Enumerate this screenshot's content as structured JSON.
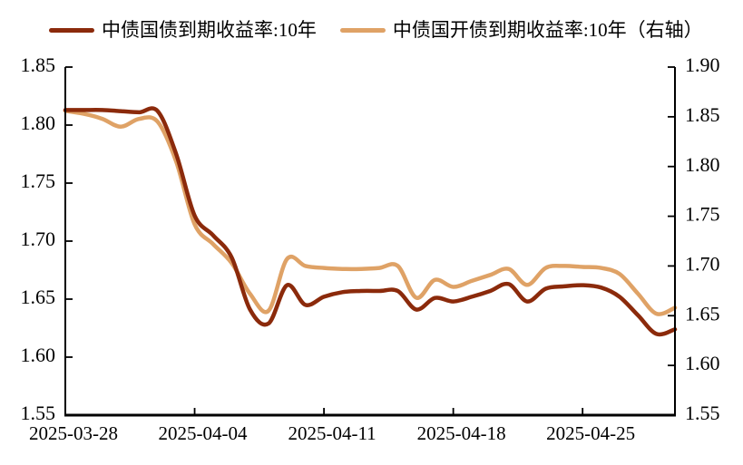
{
  "page": {
    "background": "#FFFFFF",
    "text_color": "#000000"
  },
  "legend": {
    "items": [
      {
        "label": "中债国债到期收益率:10年",
        "color": "#8B2A0B"
      },
      {
        "label": "中债国开债到期收益率:10年（右轴）",
        "color": "#DFA266"
      }
    ]
  },
  "chart_data": {
    "type": "line",
    "title": "",
    "grid": false,
    "legend_position": "top",
    "x": [
      "2025-03-28",
      "2025-03-29",
      "2025-03-30",
      "2025-03-31",
      "2025-04-01",
      "2025-04-02",
      "2025-04-03",
      "2025-04-04",
      "2025-04-05",
      "2025-04-06",
      "2025-04-07",
      "2025-04-08",
      "2025-04-09",
      "2025-04-10",
      "2025-04-11",
      "2025-04-12",
      "2025-04-13",
      "2025-04-14",
      "2025-04-15",
      "2025-04-16",
      "2025-04-17",
      "2025-04-18",
      "2025-04-19",
      "2025-04-20",
      "2025-04-21",
      "2025-04-22",
      "2025-04-23",
      "2025-04-24",
      "2025-04-25",
      "2025-04-26",
      "2025-04-27",
      "2025-04-28",
      "2025-04-29",
      "2025-04-30"
    ],
    "x_tick_labels": [
      "2025-03-28",
      "2025-04-04",
      "2025-04-11",
      "2025-04-18",
      "2025-04-25"
    ],
    "x_tick_indices": [
      0,
      7,
      14,
      21,
      28
    ],
    "series": [
      {
        "name": "中债国债到期收益率:10年",
        "axis": "left",
        "color": "#8B2A0B",
        "values": [
          1.813,
          1.813,
          1.813,
          1.812,
          1.811,
          1.812,
          1.775,
          1.722,
          1.705,
          1.686,
          1.641,
          1.629,
          1.662,
          1.645,
          1.652,
          1.656,
          1.657,
          1.657,
          1.657,
          1.641,
          1.651,
          1.648,
          1.652,
          1.657,
          1.663,
          1.648,
          1.659,
          1.661,
          1.662,
          1.66,
          1.652,
          1.636,
          1.62,
          1.624
        ]
      },
      {
        "name": "中债国开债到期收益率:10年（右轴）",
        "axis": "right",
        "color": "#DFA266",
        "values": [
          1.856,
          1.853,
          1.848,
          1.84,
          1.848,
          1.845,
          1.805,
          1.742,
          1.722,
          1.703,
          1.672,
          1.655,
          1.707,
          1.7,
          1.698,
          1.697,
          1.697,
          1.698,
          1.7,
          1.668,
          1.686,
          1.679,
          1.685,
          1.691,
          1.697,
          1.681,
          1.698,
          1.7,
          1.699,
          1.698,
          1.692,
          1.672,
          1.652,
          1.658
        ]
      }
    ],
    "y_axis_left": {
      "min": 1.55,
      "max": 1.85,
      "step": 0.05,
      "tick_labels": [
        "1.85",
        "1.80",
        "1.75",
        "1.70",
        "1.65",
        "1.60",
        "1.55"
      ]
    },
    "y_axis_right": {
      "min": 1.55,
      "max": 1.9,
      "step": 0.05,
      "tick_labels": [
        "1.90",
        "1.85",
        "1.80",
        "1.75",
        "1.70",
        "1.65",
        "1.60",
        "1.55"
      ]
    }
  }
}
